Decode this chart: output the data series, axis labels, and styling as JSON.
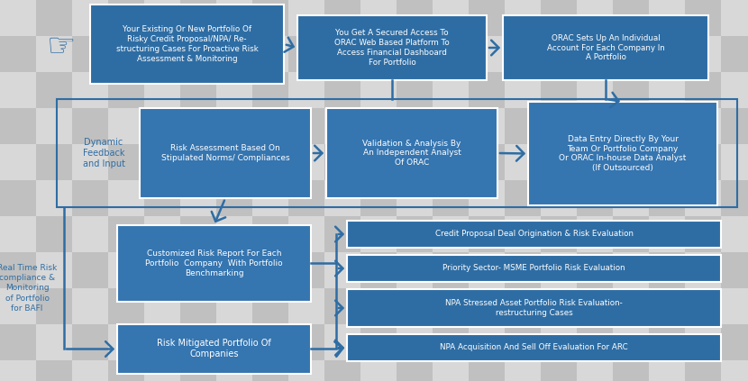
{
  "checker_light": "#d8d8d8",
  "checker_dark": "#c0c0c0",
  "box_dark": "#2e6da4",
  "box_mid": "#3575b0",
  "text_white": "#ffffff",
  "text_blue": "#2e6da4",
  "border_blue": "#2e6da4",
  "row1_boxes": [
    "Your Existing Or New Portfolio Of\nRisky Credit Proposal/NPA/ Re-\nstructuring Cases For Proactive Risk\nAssessment & Monitoring",
    "You Get A Secured Access To\nORAC Web Based Platform To\nAccess Financial Dashboard\nFor Portfolio",
    "ORAC Sets Up An Individual\nAccount For Each Company In\nA Portfolio"
  ],
  "row2_boxes": [
    "Risk Assessment Based On\nStipulated Norms/ Compliances",
    "Validation & Analysis By\nAn Independent Analyst\nOf ORAC",
    "Data Entry Directly By Your\nTeam Or Portfolio Company\nOr ORAC In-house Data Analyst\n(If Outsourced)"
  ],
  "row3_box_left": "Customized Risk Report For Each\nPortfolio  Company  With Portfolio\nBenchmarking",
  "row3_boxes_right": [
    "Credit Proposal Deal Origination & Risk Evaluation",
    "Priority Sector- MSME Portfolio Risk Evaluation",
    "NPA Stressed Asset Portfolio Risk Evaluation-\nrestructuring Cases",
    "NPA Acquisition And Sell Off Evaluation For ARC"
  ],
  "row4_box_left": "Risk Mitigated Portfolio Of\nCompanies",
  "label_dynamic": "Dynamic\nFeedback\nand Input",
  "label_realtime": "Real Time Risk\ncompliance &\nMonitoring\nof Portfolio\nfor BAFI"
}
